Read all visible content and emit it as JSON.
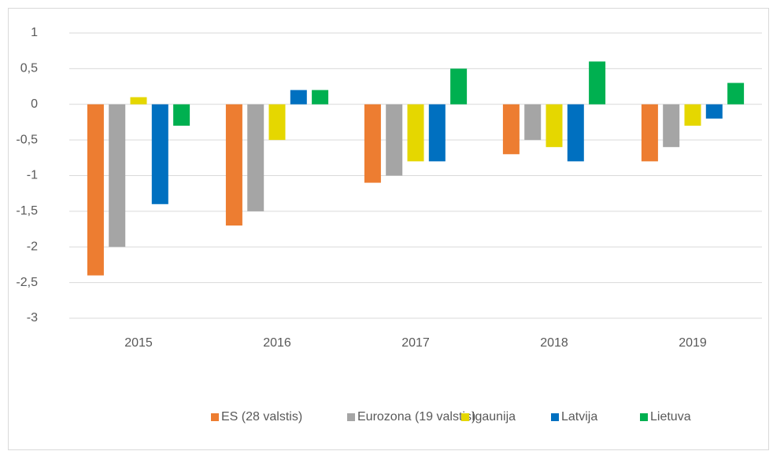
{
  "chart_data": {
    "type": "bar",
    "categories": [
      "2015",
      "2016",
      "2017",
      "2018",
      "2019"
    ],
    "series": [
      {
        "name": "ES (28 valstis)",
        "color": "#ed7d31",
        "values": [
          -2.4,
          -1.7,
          -1.1,
          -0.7,
          -0.8
        ]
      },
      {
        "name": "Eurozona (19 valstis)",
        "color": "#a5a5a5",
        "values": [
          -2,
          -1.5,
          -1.0,
          -0.5,
          -0.6
        ]
      },
      {
        "name": "Igaunija",
        "color": "#e5d700",
        "values": [
          0.1,
          -0.5,
          -0.8,
          -0.6,
          -0.3
        ]
      },
      {
        "name": "Latvija",
        "color": "#0070c0",
        "values": [
          -1.4,
          0.2,
          -0.8,
          -0.8,
          -0.2
        ]
      },
      {
        "name": "Lietuva",
        "color": "#00b050",
        "values": [
          -0.3,
          0.2,
          0.5,
          0.6,
          0.3
        ]
      }
    ],
    "ylim": [
      -3,
      1
    ],
    "yticks": [
      -3,
      {
        "value": -2.5,
        "label": "-2,5"
      },
      -2,
      {
        "value": -1.5,
        "label": "-1,5"
      },
      -1,
      {
        "value": -0.5,
        "label": "-0,5"
      },
      0,
      {
        "value": 0.5,
        "label": "0,5"
      },
      1
    ],
    "grid": true,
    "legend": "bottom"
  }
}
